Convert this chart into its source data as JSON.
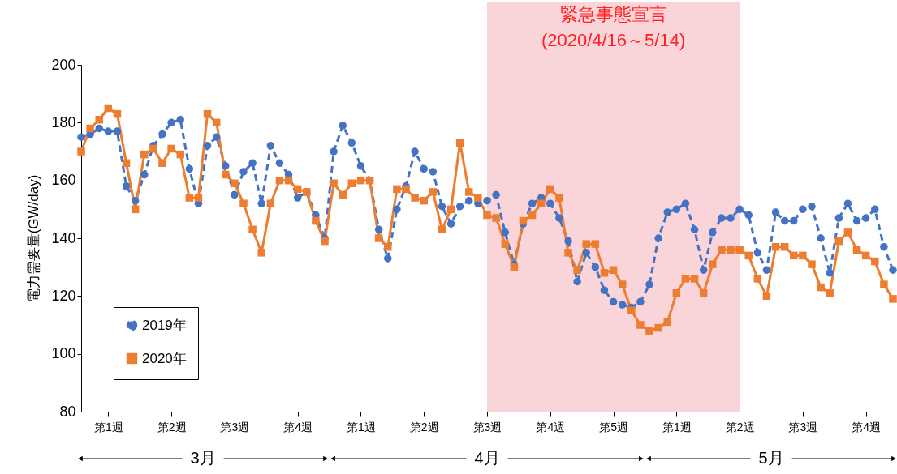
{
  "chart_data": {
    "type": "line",
    "ylabel": "電力需要量(GW/day)",
    "x": [
      "--03-02",
      "--03-03",
      "--03-04",
      "--03-05",
      "--03-06",
      "--03-07",
      "--03-08",
      "--03-09",
      "--03-10",
      "--03-11",
      "--03-12",
      "--03-13",
      "--03-14",
      "--03-15",
      "--03-16",
      "--03-17",
      "--03-18",
      "--03-19",
      "--03-20",
      "--03-21",
      "--03-22",
      "--03-23",
      "--03-24",
      "--03-25",
      "--03-26",
      "--03-27",
      "--03-28",
      "--03-29",
      "--03-30",
      "--03-31",
      "--04-01",
      "--04-02",
      "--04-03",
      "--04-04",
      "--04-05",
      "--04-06",
      "--04-07",
      "--04-08",
      "--04-09",
      "--04-10",
      "--04-11",
      "--04-12",
      "--04-13",
      "--04-14",
      "--04-15",
      "--04-16",
      "--04-17",
      "--04-18",
      "--04-19",
      "--04-20",
      "--04-21",
      "--04-22",
      "--04-23",
      "--04-24",
      "--04-25",
      "--04-26",
      "--04-27",
      "--04-28",
      "--04-29",
      "--04-30",
      "--05-01",
      "--05-02",
      "--05-03",
      "--05-04",
      "--05-05",
      "--05-06",
      "--05-07",
      "--05-08",
      "--05-09",
      "--05-10",
      "--05-11",
      "--05-12",
      "--05-13",
      "--05-14",
      "--05-15",
      "--05-16",
      "--05-17",
      "--05-18",
      "--05-19",
      "--05-20",
      "--05-21",
      "--05-22",
      "--05-23",
      "--05-24",
      "--05-25",
      "--05-26",
      "--05-27",
      "--05-28",
      "--05-29",
      "--05-30",
      "--05-31"
    ],
    "series": [
      {
        "name": "2019年",
        "color": "#4472c4",
        "line_style": "dashed",
        "marker": "circle",
        "values": [
          175,
          176,
          178,
          177,
          177,
          158,
          153,
          162,
          172,
          176,
          180,
          181,
          164,
          152,
          172,
          175,
          165,
          155,
          163,
          166,
          152,
          172,
          166,
          162,
          154,
          156,
          148,
          140,
          170,
          179,
          173,
          165,
          160,
          143,
          133,
          150,
          158,
          170,
          164,
          163,
          151,
          145,
          151,
          153,
          152,
          153,
          155,
          142,
          131,
          145,
          152,
          154,
          152,
          147,
          139,
          125,
          135,
          130,
          122,
          118,
          117,
          116,
          118,
          124,
          140,
          149,
          150,
          152,
          143,
          129,
          142,
          147,
          147,
          150,
          148,
          135,
          129,
          149,
          146,
          146,
          150,
          151,
          140,
          128,
          147,
          152,
          146,
          147,
          150,
          137,
          129
        ]
      },
      {
        "name": "2020年",
        "color": "#ed7d31",
        "line_style": "solid",
        "marker": "square",
        "values": [
          170,
          178,
          181,
          185,
          183,
          166,
          150,
          169,
          171,
          166,
          171,
          169,
          154,
          154,
          183,
          180,
          162,
          159,
          152,
          143,
          135,
          152,
          160,
          160,
          157,
          156,
          146,
          139,
          159,
          155,
          159,
          160,
          160,
          140,
          137,
          157,
          157,
          154,
          153,
          156,
          143,
          150,
          173,
          156,
          154,
          148,
          147,
          138,
          130,
          146,
          148,
          152,
          157,
          154,
          135,
          129,
          138,
          138,
          128,
          129,
          124,
          115,
          110,
          108,
          109,
          111,
          121,
          126,
          126,
          121,
          131,
          136,
          136,
          136,
          134,
          126,
          120,
          137,
          137,
          134,
          134,
          131,
          123,
          121,
          139,
          142,
          136,
          134,
          132,
          124,
          119
        ]
      }
    ],
    "xlim": [
      "--03-02",
      "--05-31"
    ],
    "xticks": [
      {
        "value": "--03-05",
        "label": "第1週"
      },
      {
        "value": "--03-12",
        "label": "第2週"
      },
      {
        "value": "--03-19",
        "label": "第3週"
      },
      {
        "value": "--03-26",
        "label": "第4週"
      },
      {
        "value": "--04-02",
        "label": "第1週"
      },
      {
        "value": "--04-09",
        "label": "第2週"
      },
      {
        "value": "--04-16",
        "label": "第3週"
      },
      {
        "value": "--04-23",
        "label": "第4週"
      },
      {
        "value": "--04-30",
        "label": "第5週"
      },
      {
        "value": "--05-07",
        "label": "第1週"
      },
      {
        "value": "--05-14",
        "label": "第2週"
      },
      {
        "value": "--05-21",
        "label": "第3週"
      },
      {
        "value": "--05-28",
        "label": "第4週"
      }
    ],
    "ylim": [
      80,
      200
    ],
    "yticks": [
      80,
      100,
      120,
      140,
      160,
      180,
      200
    ],
    "bands": [
      {
        "axis": "x",
        "from": "--04-16",
        "to": "--05-14",
        "label": "緊急事態宣言\n(2020/4/16～5/14)",
        "color": "#f9d5da"
      }
    ],
    "annotations": [
      "3月",
      "4月",
      "5月"
    ],
    "legend": "bottom left"
  }
}
